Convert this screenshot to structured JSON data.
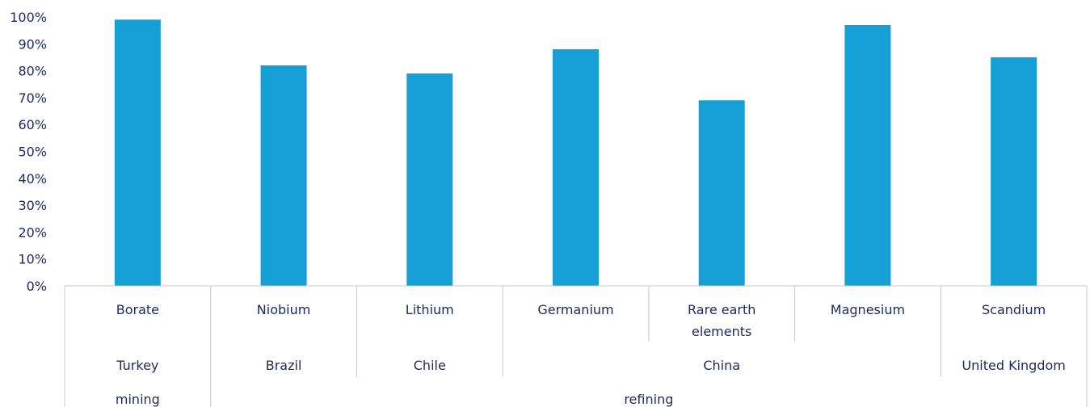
{
  "chart_data": {
    "type": "bar",
    "title": "",
    "xlabel": "",
    "ylabel": "",
    "ylim": [
      0,
      100
    ],
    "y_ticks": [
      "0%",
      "10%",
      "20%",
      "30%",
      "40%",
      "50%",
      "60%",
      "70%",
      "80%",
      "90%",
      "100%"
    ],
    "categories": [
      [
        "Borate"
      ],
      [
        "Niobium"
      ],
      [
        "Lithium"
      ],
      [
        "Germanium"
      ],
      [
        "Rare earth",
        "elements"
      ],
      [
        "Magnesium"
      ],
      [
        "Scandium"
      ]
    ],
    "values": [
      99,
      82,
      79,
      88,
      69,
      97,
      85
    ],
    "countries": [
      "Turkey",
      "Brazil",
      "Chile",
      "China",
      "United Kingdom"
    ],
    "country_spans": [
      1,
      1,
      1,
      3,
      1
    ],
    "stages": [
      "mining",
      "refining"
    ],
    "stage_spans": [
      1,
      6
    ],
    "grid": false,
    "legend": "none",
    "colors": {
      "bar": "#169fd6",
      "text": "#1b2a5e",
      "axis": "#c8c8c8"
    }
  }
}
